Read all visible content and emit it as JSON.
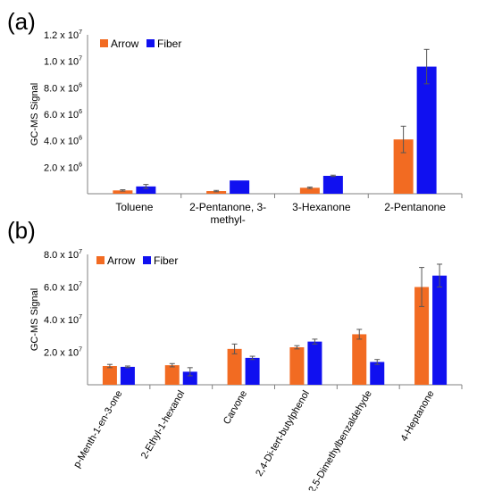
{
  "colors": {
    "arrow": "#f26b22",
    "fiber": "#1010f0",
    "axis": "#808080",
    "error": "#555555"
  },
  "chart_data": [
    {
      "type": "bar",
      "panel_label": "(a)",
      "ylabel": "GC-MS Signal",
      "ylim": [
        0,
        12000000
      ],
      "ytick_labels": [
        {
          "value": 2000000,
          "base": "2.0 x 10",
          "exp": "6"
        },
        {
          "value": 4000000,
          "base": "4.0 x 10",
          "exp": "6"
        },
        {
          "value": 6000000,
          "base": "6.0 x 10",
          "exp": "6"
        },
        {
          "value": 8000000,
          "base": "8.0 x 10",
          "exp": "6"
        },
        {
          "value": 10000000,
          "base": "1.0 x 10",
          "exp": "7"
        },
        {
          "value": 12000000,
          "base": "1.2 x 10",
          "exp": "7"
        }
      ],
      "legend": [
        "Arrow",
        "Fiber"
      ],
      "legend_position": "top-left",
      "grid": false,
      "categories": [
        "Toluene",
        "2-Pentanone, 3-methyl-",
        "3-Hexanone",
        "2-Pentanone"
      ],
      "category_display": [
        [
          "Toluene"
        ],
        [
          "2-Pentanone, 3-",
          "methyl-"
        ],
        [
          "3-Hexanone"
        ],
        [
          "2-Pentanone"
        ]
      ],
      "series": [
        {
          "name": "Arrow",
          "values": [
            250000,
            200000,
            450000,
            4100000
          ],
          "errors": [
            50000,
            50000,
            50000,
            1000000
          ]
        },
        {
          "name": "Fiber",
          "values": [
            550000,
            1000000,
            1350000,
            9600000
          ],
          "errors": [
            150000,
            0,
            50000,
            1300000
          ]
        }
      ]
    },
    {
      "type": "bar",
      "panel_label": "(b)",
      "ylabel": "GC-MS Signal",
      "ylim": [
        0,
        80000000
      ],
      "ytick_labels": [
        {
          "value": 20000000,
          "base": "2.0 x 10",
          "exp": "7"
        },
        {
          "value": 40000000,
          "base": "4.0 x 10",
          "exp": "7"
        },
        {
          "value": 60000000,
          "base": "6.0 x 10",
          "exp": "7"
        },
        {
          "value": 80000000,
          "base": "8.0 x 10",
          "exp": "7"
        }
      ],
      "legend": [
        "Arrow",
        "Fiber"
      ],
      "legend_position": "top-left",
      "grid": false,
      "categories": [
        "p-Menth-1-en-3-one",
        "2-Ethyl-1-hexanol",
        "Carvone",
        "2,4-Di-tert-butylphenol",
        "2,5-Dimethylbenzaldehyde",
        "4-Heptanone"
      ],
      "series": [
        {
          "name": "Arrow",
          "values": [
            11500000,
            12000000,
            22000000,
            23000000,
            31000000,
            60000000
          ],
          "errors": [
            1000000,
            1000000,
            3000000,
            1000000,
            3000000,
            12000000
          ]
        },
        {
          "name": "Fiber",
          "values": [
            11000000,
            8000000,
            16500000,
            26500000,
            14000000,
            67000000
          ],
          "errors": [
            500000,
            2500000,
            1000000,
            1500000,
            1500000,
            7000000
          ]
        }
      ]
    }
  ]
}
